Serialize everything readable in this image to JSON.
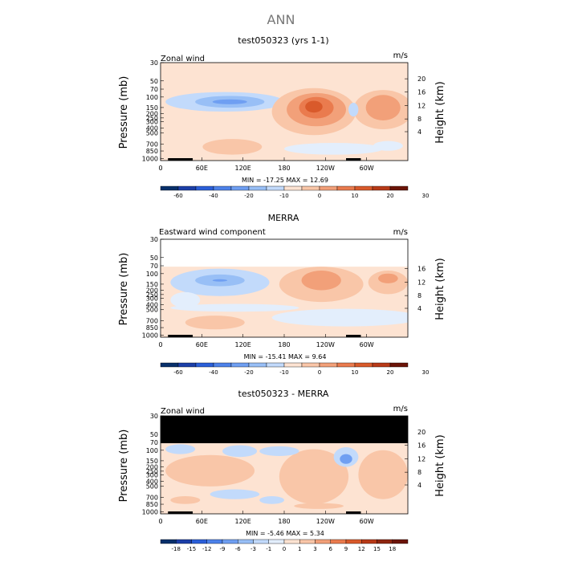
{
  "figure_title": "ANN",
  "chart_data": [
    {
      "type": "heatmap",
      "title": "test050323 (yrs 1-1)",
      "variable_label": "Zonal wind",
      "units": "m/s",
      "ylabel": "Pressure (mb)",
      "y2label": "Height (km)",
      "x_ticks": [
        "0",
        "60E",
        "120E",
        "180",
        "120W",
        "60W"
      ],
      "y_ticks": [
        "30",
        "50",
        "70",
        "100",
        "150",
        "200",
        "250",
        "300",
        "400",
        "500",
        "700",
        "850",
        "1000"
      ],
      "height_ticks": [
        "4",
        "8",
        "12",
        "16",
        "20"
      ],
      "stats": "MIN = -17.25   MAX =  12.69",
      "colorbar_ticks": [
        "-60",
        "-40",
        "-20",
        "-10",
        "0",
        "10",
        "20",
        "30"
      ],
      "colorbar_levels": 14
    },
    {
      "type": "heatmap",
      "title": "MERRA",
      "variable_label": "Eastward wind component",
      "units": "m/s",
      "ylabel": "Pressure (mb)",
      "y2label": "Height (km)",
      "x_ticks": [
        "0",
        "60E",
        "120E",
        "180",
        "120W",
        "60W"
      ],
      "y_ticks": [
        "30",
        "50",
        "70",
        "100",
        "150",
        "200",
        "250",
        "300",
        "400",
        "500",
        "700",
        "850",
        "1000"
      ],
      "height_ticks": [
        "4",
        "8",
        "12",
        "16"
      ],
      "stats": "MIN = -15.41   MAX =   9.64",
      "colorbar_ticks": [
        "-60",
        "-40",
        "-20",
        "-10",
        "0",
        "10",
        "20",
        "30"
      ],
      "colorbar_levels": 14
    },
    {
      "type": "heatmap",
      "title": "test050323 - MERRA",
      "variable_label": "Zonal wind",
      "units": "m/s",
      "ylabel": "Pressure (mb)",
      "y2label": "Height (km)",
      "x_ticks": [
        "0",
        "60E",
        "120E",
        "180",
        "120W",
        "60W"
      ],
      "y_ticks": [
        "30",
        "50",
        "70",
        "100",
        "150",
        "200",
        "250",
        "300",
        "400",
        "500",
        "700",
        "850",
        "1000"
      ],
      "height_ticks": [
        "4",
        "8",
        "12",
        "16",
        "20"
      ],
      "stats": "MIN =  -5.46   MAX =   5.34",
      "colorbar_ticks": [
        "-18",
        "-15",
        "-12",
        "-9",
        "-6",
        "-3",
        "-1",
        "0",
        "1",
        "3",
        "6",
        "9",
        "12",
        "15",
        "18"
      ],
      "colorbar_levels": 16
    }
  ],
  "colors": {
    "scale": [
      "#08306b",
      "#1c3fa8",
      "#2b5fd9",
      "#4d82ea",
      "#6f9ff2",
      "#98bff6",
      "#c2dafb",
      "#e3eefc",
      "#fde3d2",
      "#f9c6a8",
      "#f2a079",
      "#ea7b4e",
      "#d95a2b",
      "#b83a18",
      "#8f2510",
      "#6b1408"
    ],
    "neutral": "#fde3d2",
    "mask": "#000000"
  }
}
